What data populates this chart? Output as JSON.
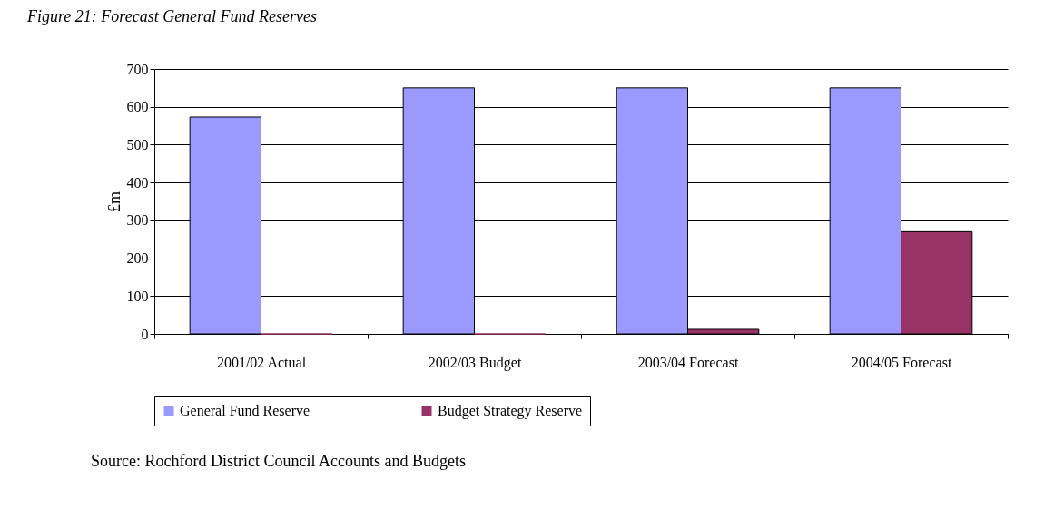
{
  "chart_data": {
    "type": "bar",
    "title": "Figure 21:   Forecast General Fund Reserves",
    "ylabel": "£m",
    "categories": [
      "2001/02 Actual",
      "2002/03 Budget",
      "2003/04 Forecast",
      "2004/05 Forecast"
    ],
    "series": [
      {
        "name": "General Fund Reserve",
        "color": "#9999ff",
        "values": [
          573,
          650,
          650,
          650
        ]
      },
      {
        "name": "Budget Strategy Reserve",
        "color": "#993366",
        "values": [
          0,
          0,
          12,
          270
        ]
      }
    ],
    "ylim": [
      0,
      700
    ],
    "yticks": [
      0,
      100,
      200,
      300,
      400,
      500,
      600,
      700
    ],
    "grid": "y",
    "legend": "bottom",
    "annotations": [
      "Source: Rochford District Council Accounts and Budgets"
    ]
  }
}
